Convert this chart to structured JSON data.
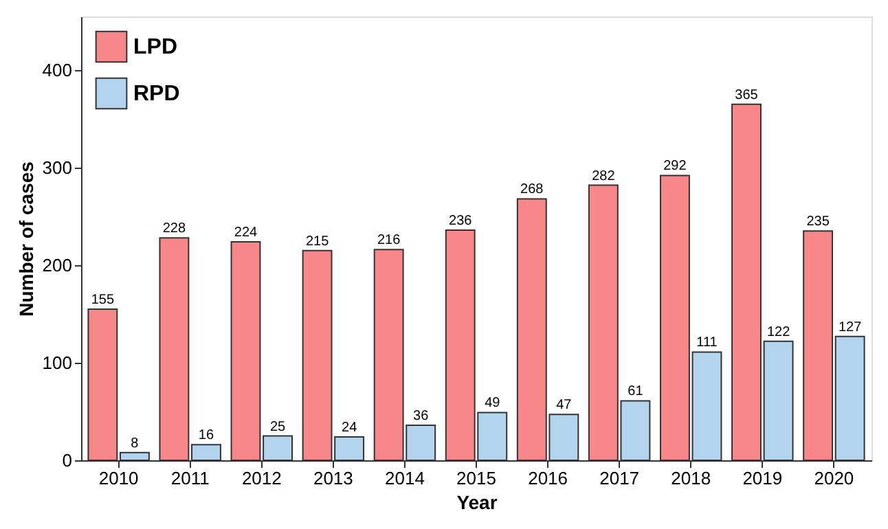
{
  "chart_data": {
    "type": "bar",
    "xlabel": "Year",
    "ylabel": "Number of cases",
    "categories": [
      "2010",
      "2011",
      "2012",
      "2013",
      "2014",
      "2015",
      "2016",
      "2017",
      "2018",
      "2019",
      "2020"
    ],
    "series": [
      {
        "name": "LPD",
        "color": "#f8878a",
        "values": [
          155,
          228,
          224,
          215,
          216,
          236,
          268,
          282,
          292,
          365,
          235
        ]
      },
      {
        "name": "RPD",
        "color": "#b3d4ef",
        "values": [
          8,
          16,
          25,
          24,
          36,
          49,
          47,
          61,
          111,
          122,
          127
        ]
      }
    ],
    "ylim": [
      0,
      455
    ],
    "yticks": [
      0,
      100,
      200,
      300,
      400
    ],
    "grid": false,
    "legend": "top left",
    "data_labels": true
  }
}
